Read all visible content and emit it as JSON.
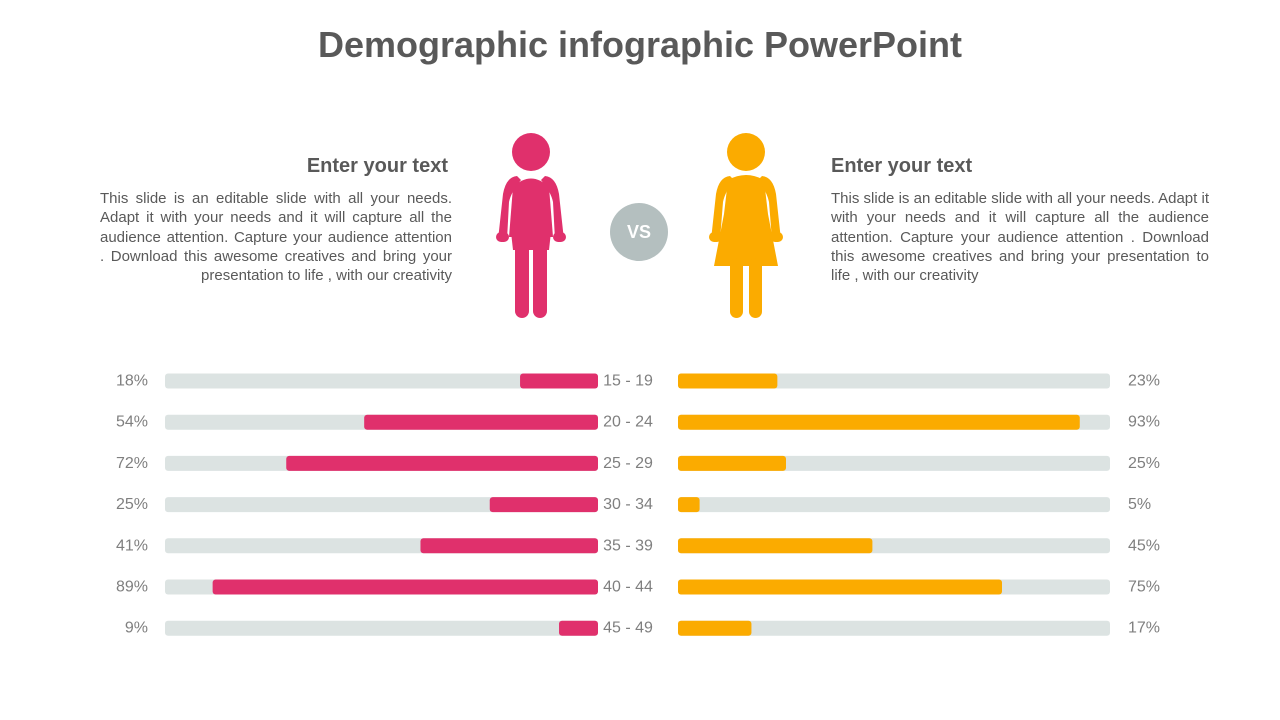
{
  "title": "Demographic infographic PowerPoint",
  "vs_label": "VS",
  "left_panel": {
    "heading": "Enter your text",
    "body": "This slide is an editable slide with all your needs. Adapt it with your needs and it will capture all the audience attention. Capture your audience attention . Download this awesome creatives and bring your presentation to life , with our creativity"
  },
  "right_panel": {
    "heading": "Enter your text",
    "body": "This slide is an editable slide with all your needs. Adapt it with your needs and it will capture all the audience attention. Capture your audience attention . Download this awesome creatives and bring your presentation to life , with our creativity"
  },
  "icons": {
    "male": "male-person-icon",
    "female": "female-person-icon"
  },
  "colors": {
    "male": "#e0306c",
    "female": "#fbab00",
    "track": "#dce3e2",
    "label": "#7f7f7f",
    "vs": "#b4bfbf"
  },
  "chart_data": {
    "type": "bar",
    "categories": [
      "15 - 19",
      "20 - 24",
      "25 - 29",
      "30 - 34",
      "35 - 39",
      "40 - 44",
      "45 - 49"
    ],
    "series": [
      {
        "values": [
          18,
          54,
          72,
          25,
          41,
          89,
          9
        ],
        "labels": [
          "18%",
          "54%",
          "72%",
          "25%",
          "41%",
          "89%",
          "9%"
        ]
      },
      {
        "values": [
          23,
          93,
          25,
          5,
          45,
          75,
          17
        ],
        "labels": [
          "23%",
          "93%",
          "25%",
          "5%",
          "45%",
          "75%",
          "17%"
        ]
      }
    ],
    "xlim": [
      0,
      100
    ]
  }
}
